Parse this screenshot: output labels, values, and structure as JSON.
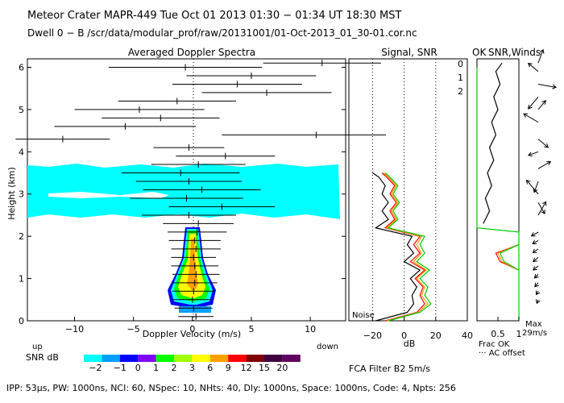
{
  "header": {
    "line1": "Meteor Crater   MAPR-449   Tue Oct 01 2013 01:30 − 01:34 UT 18:30 MST",
    "line2": "Dwell  0 −  B    /scr/data/modular_prof/raw/20131001/01-Oct-2013_01_30-01.cor.nc"
  },
  "footer": {
    "line": "IPP:  53μs,   PW: 1000ns,   NCI:  60,   NSpec: 10,  NHts: 40,   Dly: 1000ns,   Space: 1000ns,   Code: 4,   Npts: 256"
  },
  "colorbar": {
    "label": "SNR dB",
    "up_label": "up",
    "down_label": "down",
    "ticks": [
      "−2",
      "−1",
      "0",
      "1",
      "2",
      "3",
      "6",
      "9",
      "12",
      "15",
      "20"
    ],
    "colors": [
      "#00ffff",
      "#00a0ff",
      "#0000ff",
      "#8000ff",
      "#00ff00",
      "#a0ff00",
      "#ffff00",
      "#ffa000",
      "#ff0000",
      "#800000",
      "#400040",
      "#600060"
    ]
  },
  "panel_doppler": {
    "title": "Averaged Doppler Spectra",
    "ylabel": "Height (km)"
  },
  "panel_signal": {
    "title": "Signal, SNR",
    "noise_label": "Noise",
    "filter_label": "FCA Filter B2  5m/s"
  },
  "panel_winds": {
    "title_ok": "OK",
    "title": "SNR,Winds",
    "frac_label": "Frac OK",
    "offset_label": "··· AC offset",
    "max_label": "Max",
    "max_value": "29m/s",
    "beams": [
      {
        "label": "0",
        "color": "#ff0000"
      },
      {
        "label": "1",
        "color": "#ff9900"
      },
      {
        "label": "2",
        "color": "#00cc00"
      }
    ]
  },
  "chart_data": [
    {
      "type": "scatter",
      "title": "Averaged Doppler Spectra",
      "xlabel": "Doppler Velocity (m/s)",
      "ylabel": "Height (km)",
      "xlim": [
        -14,
        13
      ],
      "ylim": [
        0,
        6.2
      ],
      "xticks": [
        "−10",
        "−5",
        "0",
        "5",
        "10"
      ],
      "yticks": [
        "0",
        "1",
        "2",
        "3",
        "4",
        "5",
        "6"
      ],
      "mean_velocity": [
        {
          "h": 0.1,
          "v": 0.3
        },
        {
          "h": 0.3,
          "v": 0.1
        },
        {
          "h": 0.5,
          "v": 0.0
        },
        {
          "h": 0.7,
          "v": 0.1
        },
        {
          "h": 0.9,
          "v": 0.2
        },
        {
          "h": 1.1,
          "v": 0.3
        },
        {
          "h": 1.3,
          "v": 0.2
        },
        {
          "h": 1.5,
          "v": 0.1
        },
        {
          "h": 1.7,
          "v": 0.3
        },
        {
          "h": 1.9,
          "v": 0.2
        },
        {
          "h": 2.1,
          "v": 0.4
        },
        {
          "h": 2.3,
          "v": 0.5
        },
        {
          "h": 2.5,
          "v": -0.3
        },
        {
          "h": 2.7,
          "v": 2.5
        },
        {
          "h": 2.9,
          "v": -0.5
        },
        {
          "h": 3.1,
          "v": 0.8
        },
        {
          "h": 3.3,
          "v": -0.3
        },
        {
          "h": 3.5,
          "v": -1.0
        },
        {
          "h": 3.7,
          "v": 0.5
        },
        {
          "h": 3.9,
          "v": 2.8
        },
        {
          "h": 4.1,
          "v": -0.3
        },
        {
          "h": 4.3,
          "v": -11.0
        },
        {
          "h": 4.4,
          "v": 10.5
        },
        {
          "h": 4.6,
          "v": -5.7
        },
        {
          "h": 4.8,
          "v": -2.7
        },
        {
          "h": 5.0,
          "v": -4.5
        },
        {
          "h": 5.2,
          "v": -1.3
        },
        {
          "h": 5.4,
          "v": 6.3
        },
        {
          "h": 5.6,
          "v": 3.8
        },
        {
          "h": 5.8,
          "v": 5.0
        },
        {
          "h": 6.0,
          "v": -0.6
        },
        {
          "h": 6.1,
          "v": 11.0
        }
      ],
      "spread": [
        1.5,
        1.6,
        1.7,
        1.8,
        1.9,
        2.0,
        2.0,
        1.9,
        2.1,
        2.2,
        2.5,
        3.0,
        4.0,
        4.5,
        4.8,
        5.0,
        4.5,
        5.0,
        4.0,
        4.2,
        3.0,
        4.0,
        8.0,
        6.0,
        5.0,
        5.5,
        5.0,
        5.5,
        5.5,
        5.5,
        6.5,
        5.0
      ]
    },
    {
      "type": "line",
      "title": "Signal, SNR",
      "xlabel": "dB",
      "xlim": [
        -35,
        40
      ],
      "ylim": [
        0,
        6.2
      ],
      "xticks": [
        "−20",
        "0",
        "20",
        "40"
      ],
      "reference_lines_dB": [
        -20,
        0,
        20
      ],
      "noise": {
        "h": [
          0.0,
          0.2,
          0.4,
          0.6,
          0.8,
          1.0,
          1.2,
          1.4,
          1.6,
          1.8,
          2.0,
          2.2,
          2.4,
          2.6,
          2.8,
          3.0,
          3.2,
          3.4,
          3.5
        ],
        "dB": [
          -18,
          2,
          6,
          5,
          8,
          4,
          10,
          0,
          6,
          2,
          5,
          -18,
          -10,
          -14,
          -10,
          -14,
          -12,
          -16,
          -20
        ]
      },
      "series": [
        {
          "name": "0",
          "h": [
            0.0,
            0.2,
            0.4,
            0.6,
            0.8,
            1.0,
            1.2,
            1.4,
            1.6,
            1.8,
            2.0,
            2.2,
            2.4,
            2.6,
            2.8,
            3.0,
            3.2,
            3.4,
            3.5
          ],
          "dB": [
            -12,
            8,
            13,
            10,
            12,
            7,
            13,
            4,
            10,
            6,
            10,
            -12,
            -6,
            -9,
            -5,
            -9,
            -6,
            -11,
            -14
          ]
        },
        {
          "name": "1",
          "h": [
            0.0,
            0.2,
            0.4,
            0.6,
            0.8,
            1.0,
            1.2,
            1.4,
            1.6,
            1.8,
            2.0,
            2.2,
            2.4,
            2.6,
            2.8,
            3.0,
            3.2,
            3.4,
            3.5
          ],
          "dB": [
            -11,
            9,
            15,
            11,
            13,
            8,
            14,
            6,
            11,
            8,
            11,
            -11,
            -5,
            -8,
            -4,
            -8,
            -5,
            -10,
            -13
          ]
        },
        {
          "name": "2",
          "h": [
            0.0,
            0.2,
            0.4,
            0.6,
            0.8,
            1.0,
            1.2,
            1.4,
            1.6,
            1.8,
            2.0,
            2.2,
            2.4,
            2.6,
            2.8,
            3.0,
            3.2,
            3.4,
            3.5
          ],
          "dB": [
            -10,
            10,
            17,
            13,
            15,
            10,
            16,
            8,
            13,
            10,
            13,
            -10,
            -4,
            -7,
            -3,
            -7,
            -4,
            -9,
            -12
          ]
        }
      ]
    },
    {
      "type": "line",
      "title": "SNR,Winds",
      "xlabel": "Frac OK",
      "xlim": [
        0,
        1
      ],
      "ylim": [
        0,
        6.2
      ],
      "xticks": [
        "0.5",
        "1"
      ],
      "frac_ok": {
        "h": [
          0.0,
          0.5,
          1.0,
          1.5,
          2.0,
          2.1,
          2.2,
          2.3,
          2.5,
          3.0,
          3.5,
          4.0,
          4.5,
          5.0,
          5.5,
          6.0
        ],
        "frac": [
          1.0,
          1.0,
          1.0,
          1.0,
          1.0,
          1.0,
          0.0,
          0.0,
          0.0,
          0.0,
          0.0,
          0.0,
          0.0,
          0.0,
          0.0,
          0.0
        ]
      },
      "ac_offset": {
        "h": [
          2.3,
          2.6,
          2.9,
          3.2,
          3.5,
          3.8,
          4.1,
          4.4,
          4.7,
          5.0,
          5.3,
          5.6,
          5.9,
          6.1
        ],
        "frac": [
          0.15,
          0.3,
          0.2,
          0.35,
          0.25,
          0.4,
          0.3,
          0.45,
          0.35,
          0.5,
          0.4,
          0.55,
          0.45,
          0.6
        ]
      },
      "beam_snr": {
        "h": [
          1.2,
          1.4,
          1.6,
          1.8
        ],
        "red": [
          1.0,
          0.55,
          0.45,
          1.0
        ],
        "orange": [
          1.0,
          0.6,
          0.5,
          1.0
        ],
        "green": [
          1.0,
          0.65,
          0.55,
          1.0
        ]
      },
      "wind_barbs": [
        {
          "h": 0.5,
          "spd": 3,
          "dir": 200
        },
        {
          "h": 0.7,
          "spd": 3,
          "dir": 210
        },
        {
          "h": 0.9,
          "spd": 4,
          "dir": 220
        },
        {
          "h": 1.1,
          "spd": 4,
          "dir": 225
        },
        {
          "h": 1.3,
          "spd": 5,
          "dir": 230
        },
        {
          "h": 1.5,
          "spd": 5,
          "dir": 230
        },
        {
          "h": 1.7,
          "spd": 5,
          "dir": 235
        },
        {
          "h": 1.9,
          "spd": 5,
          "dir": 240
        },
        {
          "h": 2.1,
          "spd": 6,
          "dir": 240
        },
        {
          "h": 2.5,
          "spd": 12,
          "dir": 30
        },
        {
          "h": 2.8,
          "spd": 10,
          "dir": 150
        },
        {
          "h": 3.0,
          "spd": 14,
          "dir": 320
        },
        {
          "h": 3.3,
          "spd": 9,
          "dir": 200
        },
        {
          "h": 3.6,
          "spd": 11,
          "dir": 60
        },
        {
          "h": 4.0,
          "spd": 8,
          "dir": 250
        },
        {
          "h": 4.3,
          "spd": 10,
          "dir": 130
        },
        {
          "h": 4.7,
          "spd": 13,
          "dir": 300
        },
        {
          "h": 5.0,
          "spd": 9,
          "dir": 40
        },
        {
          "h": 5.3,
          "spd": 12,
          "dir": 220
        },
        {
          "h": 5.6,
          "spd": 14,
          "dir": 100
        },
        {
          "h": 5.9,
          "spd": 10,
          "dir": 310
        },
        {
          "h": 6.1,
          "spd": 11,
          "dir": 20
        }
      ]
    }
  ]
}
